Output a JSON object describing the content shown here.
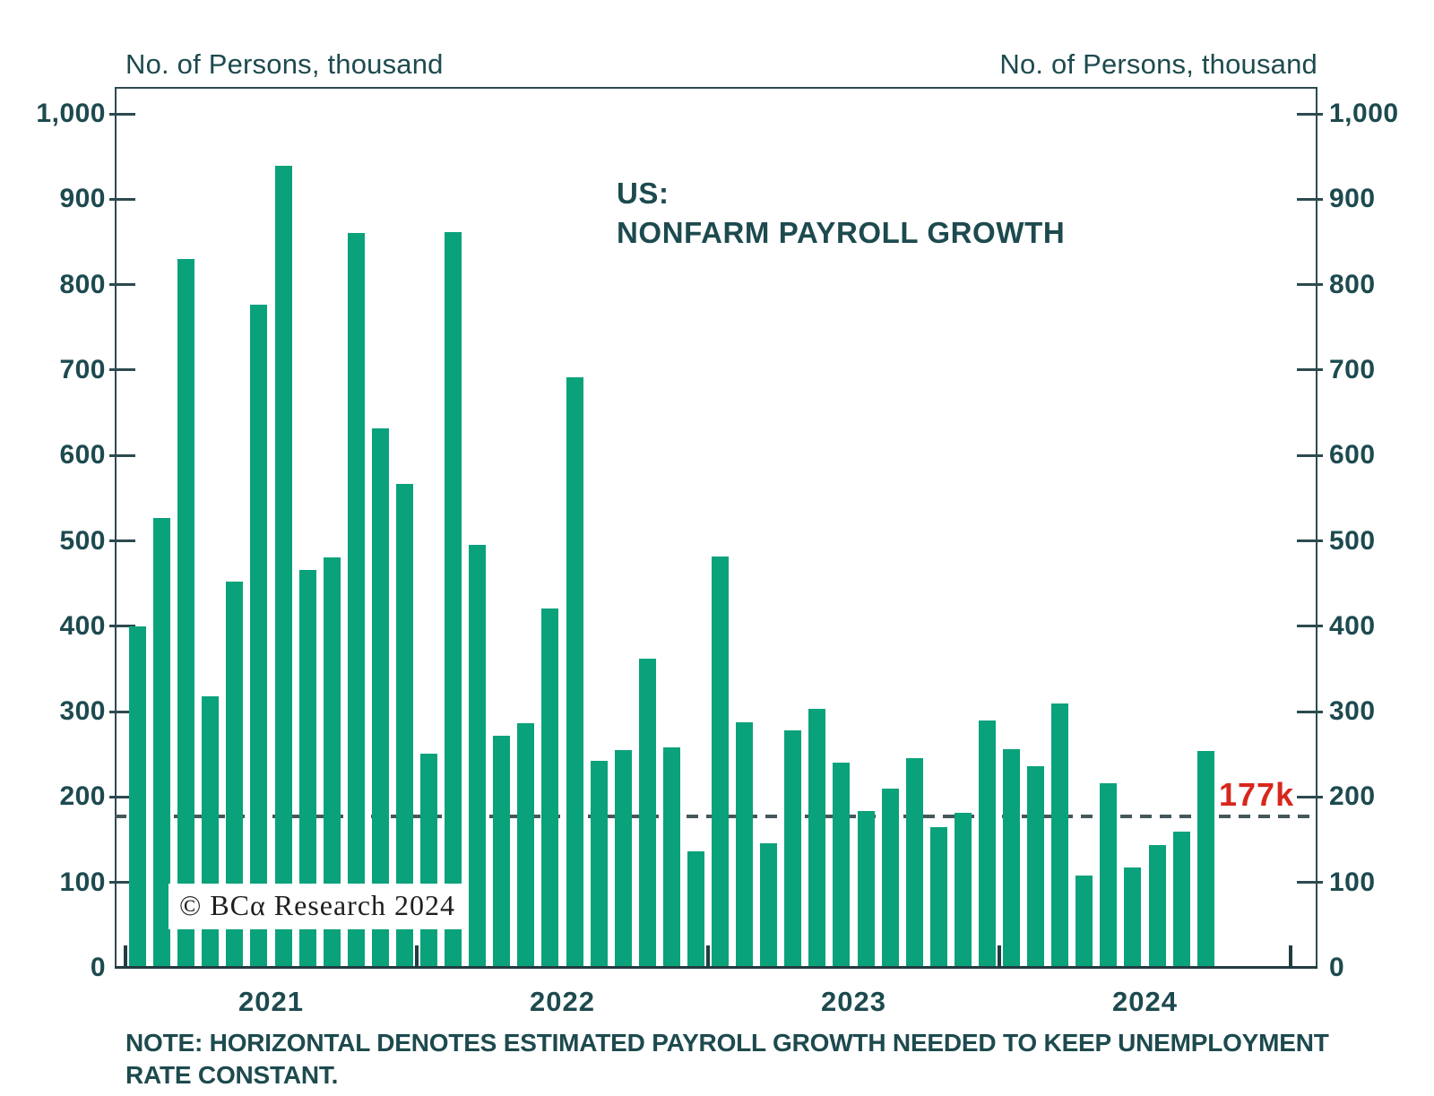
{
  "axis_titles": {
    "left": "No. of Persons, thousand",
    "right": "No. of Persons, thousand"
  },
  "title": {
    "line1": "US:",
    "line2": "NONFARM PAYROLL GROWTH"
  },
  "watermark": "© BCα Research 2024",
  "note": {
    "line1": "NOTE: HORIZONTAL DENOTES ESTIMATED PAYROLL GROWTH NEEDED TO KEEP UNEMPLOYMENT",
    "line2": "RATE CONSTANT."
  },
  "colors": {
    "bar": "#0aa27b",
    "text": "#1d4a4e",
    "axis": "#2c4a4f",
    "dash": "#45575b",
    "breakeven_label_red": "#d7271d"
  },
  "chart_data": {
    "type": "bar",
    "title": "US: NONFARM PAYROLL GROWTH",
    "y_axis_label_left": "No. of Persons, thousand",
    "y_axis_label_right": "No. of Persons, thousand",
    "ylim": [
      0,
      1000
    ],
    "ytick_step": 100,
    "ytick_labels": [
      "0",
      "100",
      "200",
      "300",
      "400",
      "500",
      "600",
      "700",
      "800",
      "900",
      "1,000"
    ],
    "grid": false,
    "legend": "none",
    "breakeven_line": {
      "value": 177,
      "label": "177k",
      "style": "dashed",
      "meaning": "estimated payroll growth needed to keep unemployment rate constant"
    },
    "years": [
      {
        "label": "2021",
        "values": [
          400,
          527,
          830,
          318,
          452,
          777,
          939,
          466,
          481,
          860,
          632,
          567
        ]
      },
      {
        "label": "2022",
        "values": [
          251,
          862,
          495,
          272,
          286,
          421,
          691,
          242,
          255,
          362,
          258,
          136
        ]
      },
      {
        "label": "2023",
        "values": [
          482,
          287,
          146,
          278,
          303,
          240,
          184,
          210,
          246,
          165,
          182,
          290
        ]
      },
      {
        "label": "2024",
        "values": [
          256,
          236,
          310,
          108,
          216,
          118,
          144,
          159,
          254
        ]
      }
    ]
  }
}
